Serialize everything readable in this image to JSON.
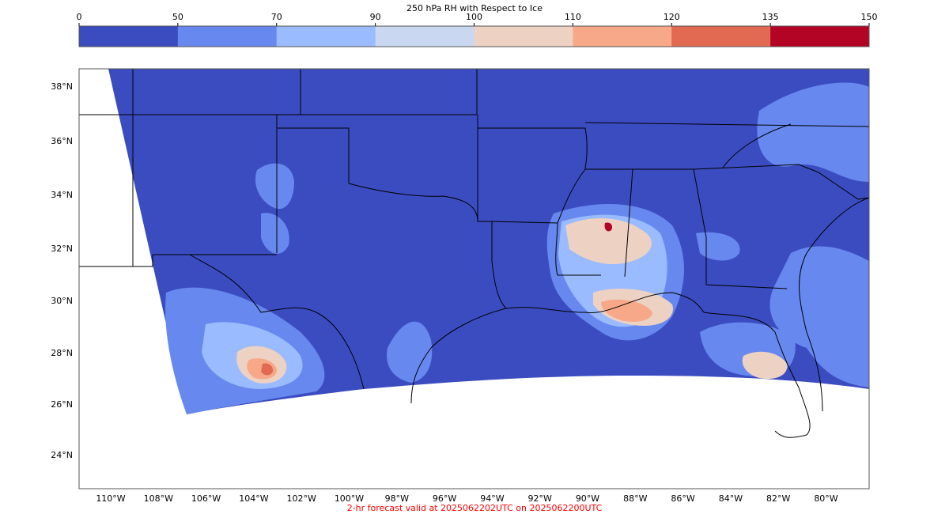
{
  "colorbar": {
    "title": "250 hPa RH with Respect to Ice",
    "ticks": [
      "0",
      "50",
      "70",
      "90",
      "100",
      "110",
      "120",
      "135",
      "150"
    ],
    "colors": [
      "#3b4cc0",
      "#6788ee",
      "#9abbff",
      "#c9d7f0",
      "#edd1c2",
      "#f7a889",
      "#e26952",
      "#b40426"
    ]
  },
  "map": {
    "lat_labels": [
      "38°N",
      "36°N",
      "34°N",
      "32°N",
      "30°N",
      "28°N",
      "26°N",
      "24°N"
    ],
    "lon_labels": [
      "110°W",
      "108°W",
      "106°W",
      "104°W",
      "102°W",
      "100°W",
      "98°W",
      "96°W",
      "94°W",
      "92°W",
      "90°W",
      "88°W",
      "86°W",
      "84°W",
      "82°W",
      "80°W"
    ],
    "background_color": "#3b4cc0"
  },
  "footer": {
    "valid_time": "2-hr forecast valid at 2025062202UTC on 2025062200UTC"
  }
}
